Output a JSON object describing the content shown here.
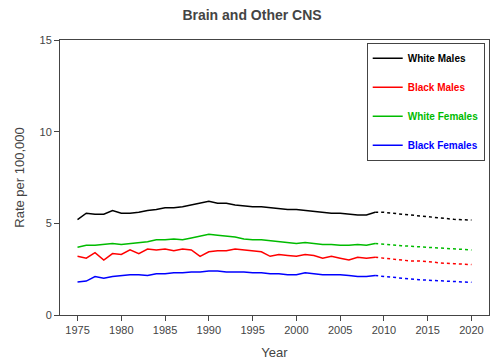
{
  "chart_data": {
    "type": "line",
    "title": "Brain and Other CNS",
    "xlabel": "Year",
    "ylabel": "Rate per 100,000",
    "xlim": [
      1973,
      2022
    ],
    "ylim": [
      0,
      15
    ],
    "xticks": [
      1975,
      1980,
      1985,
      1990,
      1995,
      2000,
      2005,
      2010,
      2015,
      2020
    ],
    "yticks": [
      0,
      5,
      10,
      15
    ],
    "grid": false,
    "legend": "upper right",
    "series": [
      {
        "name": "White Males",
        "color": "#000000",
        "line_style": "solid",
        "x": [
          1975,
          1976,
          1977,
          1978,
          1979,
          1980,
          1981,
          1982,
          1983,
          1984,
          1985,
          1986,
          1987,
          1988,
          1989,
          1990,
          1991,
          1992,
          1993,
          1994,
          1995,
          1996,
          1997,
          1998,
          1999,
          2000,
          2001,
          2002,
          2003,
          2004,
          2005,
          2006,
          2007,
          2008,
          2009
        ],
        "values": [
          5.2,
          5.55,
          5.5,
          5.5,
          5.7,
          5.55,
          5.55,
          5.6,
          5.7,
          5.75,
          5.85,
          5.85,
          5.9,
          6.0,
          6.1,
          6.2,
          6.1,
          6.1,
          6.0,
          5.95,
          5.9,
          5.9,
          5.85,
          5.8,
          5.75,
          5.75,
          5.7,
          5.65,
          5.6,
          5.55,
          5.55,
          5.5,
          5.45,
          5.45,
          5.6
        ]
      },
      {
        "name": "Black Males",
        "color": "#FF0000",
        "line_style": "solid",
        "x": [
          1975,
          1976,
          1977,
          1978,
          1979,
          1980,
          1981,
          1982,
          1983,
          1984,
          1985,
          1986,
          1987,
          1988,
          1989,
          1990,
          1991,
          1992,
          1993,
          1994,
          1995,
          1996,
          1997,
          1998,
          1999,
          2000,
          2001,
          2002,
          2003,
          2004,
          2005,
          2006,
          2007,
          2008,
          2009
        ],
        "values": [
          3.2,
          3.1,
          3.4,
          3.0,
          3.35,
          3.3,
          3.55,
          3.35,
          3.6,
          3.55,
          3.6,
          3.5,
          3.6,
          3.55,
          3.2,
          3.45,
          3.5,
          3.5,
          3.6,
          3.55,
          3.5,
          3.45,
          3.2,
          3.3,
          3.25,
          3.2,
          3.3,
          3.25,
          3.1,
          3.2,
          3.1,
          3.0,
          3.15,
          3.1,
          3.15
        ]
      },
      {
        "name": "White Females",
        "color": "#00BB00",
        "line_style": "solid",
        "x": [
          1975,
          1976,
          1977,
          1978,
          1979,
          1980,
          1981,
          1982,
          1983,
          1984,
          1985,
          1986,
          1987,
          1988,
          1989,
          1990,
          1991,
          1992,
          1993,
          1994,
          1995,
          1996,
          1997,
          1998,
          1999,
          2000,
          2001,
          2002,
          2003,
          2004,
          2005,
          2006,
          2007,
          2008,
          2009
        ],
        "values": [
          3.7,
          3.8,
          3.8,
          3.85,
          3.9,
          3.85,
          3.9,
          3.95,
          4.0,
          4.1,
          4.1,
          4.15,
          4.1,
          4.2,
          4.3,
          4.4,
          4.35,
          4.3,
          4.25,
          4.15,
          4.1,
          4.1,
          4.05,
          4.0,
          3.95,
          3.9,
          3.95,
          3.9,
          3.85,
          3.85,
          3.8,
          3.8,
          3.85,
          3.8,
          3.9
        ]
      },
      {
        "name": "Black Females",
        "color": "#0000FF",
        "line_style": "solid",
        "x": [
          1975,
          1976,
          1977,
          1978,
          1979,
          1980,
          1981,
          1982,
          1983,
          1984,
          1985,
          1986,
          1987,
          1988,
          1989,
          1990,
          1991,
          1992,
          1993,
          1994,
          1995,
          1996,
          1997,
          1998,
          1999,
          2000,
          2001,
          2002,
          2003,
          2004,
          2005,
          2006,
          2007,
          2008,
          2009
        ],
        "values": [
          1.8,
          1.85,
          2.1,
          2.0,
          2.1,
          2.15,
          2.2,
          2.2,
          2.15,
          2.25,
          2.25,
          2.3,
          2.3,
          2.35,
          2.35,
          2.4,
          2.4,
          2.35,
          2.35,
          2.35,
          2.3,
          2.3,
          2.25,
          2.25,
          2.2,
          2.2,
          2.3,
          2.25,
          2.2,
          2.2,
          2.2,
          2.15,
          2.1,
          2.1,
          2.15
        ]
      },
      {
        "name": "White Males",
        "color": "#000000",
        "line_style": "dotted",
        "x": [
          2009,
          2010,
          2011,
          2012,
          2013,
          2014,
          2015,
          2016,
          2017,
          2018,
          2019,
          2020
        ],
        "values": [
          5.6,
          5.6,
          5.55,
          5.5,
          5.45,
          5.4,
          5.35,
          5.3,
          5.25,
          5.22,
          5.2,
          5.18
        ]
      },
      {
        "name": "Black Males",
        "color": "#FF0000",
        "line_style": "dotted",
        "x": [
          2009,
          2010,
          2011,
          2012,
          2013,
          2014,
          2015,
          2016,
          2017,
          2018,
          2019,
          2020
        ],
        "values": [
          3.15,
          3.1,
          3.05,
          3.0,
          2.95,
          2.95,
          2.9,
          2.85,
          2.82,
          2.8,
          2.78,
          2.75
        ]
      },
      {
        "name": "White Females",
        "color": "#00BB00",
        "line_style": "dotted",
        "x": [
          2009,
          2010,
          2011,
          2012,
          2013,
          2014,
          2015,
          2016,
          2017,
          2018,
          2019,
          2020
        ],
        "values": [
          3.9,
          3.85,
          3.82,
          3.78,
          3.75,
          3.72,
          3.7,
          3.65,
          3.62,
          3.6,
          3.58,
          3.55
        ]
      },
      {
        "name": "Black Females",
        "color": "#0000FF",
        "line_style": "dotted",
        "x": [
          2009,
          2010,
          2011,
          2012,
          2013,
          2014,
          2015,
          2016,
          2017,
          2018,
          2019,
          2020
        ],
        "values": [
          2.15,
          2.1,
          2.05,
          2.0,
          1.95,
          1.92,
          1.9,
          1.87,
          1.85,
          1.82,
          1.8,
          1.78
        ]
      }
    ]
  }
}
